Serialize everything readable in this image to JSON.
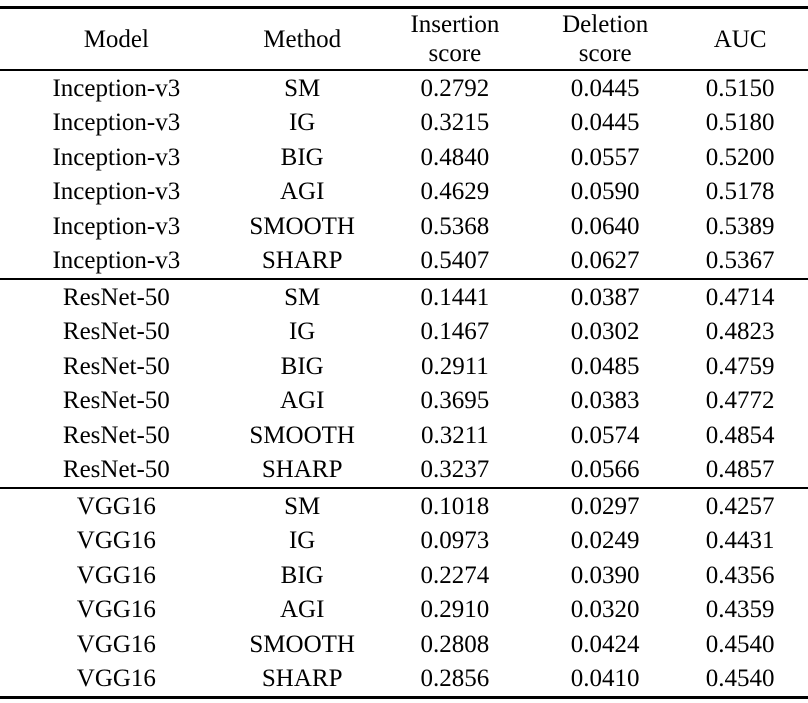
{
  "table": {
    "header": {
      "model": "Model",
      "method": "Method",
      "insertion_line1": "Insertion",
      "insertion_line2": "score",
      "deletion_line1": "Deletion",
      "deletion_line2": "score",
      "auc": "AUC"
    },
    "groups": [
      {
        "model": "Inception-v3",
        "rows": [
          {
            "method": "SM",
            "insertion": "0.2792",
            "deletion": "0.0445",
            "auc": "0.5150"
          },
          {
            "method": "IG",
            "insertion": "0.3215",
            "deletion": "0.0445",
            "auc": "0.5180"
          },
          {
            "method": "BIG",
            "insertion": "0.4840",
            "deletion": "0.0557",
            "auc": "0.5200"
          },
          {
            "method": "AGI",
            "insertion": "0.4629",
            "deletion": "0.0590",
            "auc": "0.5178"
          },
          {
            "method": "SMOOTH",
            "insertion": "0.5368",
            "deletion": "0.0640",
            "auc": "0.5389"
          },
          {
            "method": "SHARP",
            "insertion": "0.5407",
            "deletion": "0.0627",
            "auc": "0.5367"
          }
        ]
      },
      {
        "model": "ResNet-50",
        "rows": [
          {
            "method": "SM",
            "insertion": "0.1441",
            "deletion": "0.0387",
            "auc": "0.4714"
          },
          {
            "method": "IG",
            "insertion": "0.1467",
            "deletion": "0.0302",
            "auc": "0.4823"
          },
          {
            "method": "BIG",
            "insertion": "0.2911",
            "deletion": "0.0485",
            "auc": "0.4759"
          },
          {
            "method": "AGI",
            "insertion": "0.3695",
            "deletion": "0.0383",
            "auc": "0.4772"
          },
          {
            "method": "SMOOTH",
            "insertion": "0.3211",
            "deletion": "0.0574",
            "auc": "0.4854"
          },
          {
            "method": "SHARP",
            "insertion": "0.3237",
            "deletion": "0.0566",
            "auc": "0.4857"
          }
        ]
      },
      {
        "model": "VGG16",
        "rows": [
          {
            "method": "SM",
            "insertion": "0.1018",
            "deletion": "0.0297",
            "auc": "0.4257"
          },
          {
            "method": "IG",
            "insertion": "0.0973",
            "deletion": "0.0249",
            "auc": "0.4431"
          },
          {
            "method": "BIG",
            "insertion": "0.2274",
            "deletion": "0.0390",
            "auc": "0.4356"
          },
          {
            "method": "AGI",
            "insertion": "0.2910",
            "deletion": "0.0320",
            "auc": "0.4359"
          },
          {
            "method": "SMOOTH",
            "insertion": "0.2808",
            "deletion": "0.0424",
            "auc": "0.4540"
          },
          {
            "method": "SHARP",
            "insertion": "0.2856",
            "deletion": "0.0410",
            "auc": "0.4540"
          }
        ]
      }
    ]
  }
}
